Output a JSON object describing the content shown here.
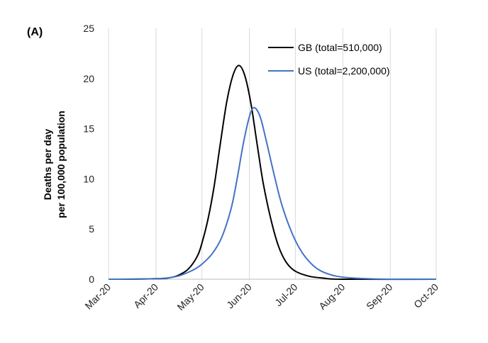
{
  "chart_data": {
    "type": "line",
    "panel_label": "(A)",
    "title": "",
    "xlabel": "",
    "ylabel_lines": [
      "Deaths per day",
      "per 100,000 population"
    ],
    "ylim": [
      0,
      25
    ],
    "yticks": [
      0,
      5,
      10,
      15,
      20,
      25
    ],
    "xlim": [
      "2020-03-01",
      "2020-10-01"
    ],
    "xtick_labels": [
      "Mar-20",
      "Apr-20",
      "May-20",
      "Jun-20",
      "Jul-20",
      "Aug-20",
      "Sep-20",
      "Oct-20"
    ],
    "grid": "vertical",
    "legend_position": "top-right",
    "series": [
      {
        "name": "GB (total=510,000)",
        "color": "#000000",
        "points": [
          [
            "2020-03-01",
            0
          ],
          [
            "2020-03-15",
            0
          ],
          [
            "2020-04-01",
            0.05
          ],
          [
            "2020-04-08",
            0.1
          ],
          [
            "2020-04-15",
            0.35
          ],
          [
            "2020-04-22",
            1.0
          ],
          [
            "2020-04-28",
            2.3
          ],
          [
            "2020-05-01",
            3.6
          ],
          [
            "2020-05-05",
            6.0
          ],
          [
            "2020-05-09",
            9.3
          ],
          [
            "2020-05-13",
            13.5
          ],
          [
            "2020-05-17",
            17.5
          ],
          [
            "2020-05-21",
            20.2
          ],
          [
            "2020-05-25",
            21.3
          ],
          [
            "2020-05-29",
            20.3
          ],
          [
            "2020-06-02",
            17.5
          ],
          [
            "2020-06-06",
            13.5
          ],
          [
            "2020-06-10",
            9.6
          ],
          [
            "2020-06-15",
            6.0
          ],
          [
            "2020-06-20",
            3.3
          ],
          [
            "2020-06-25",
            1.7
          ],
          [
            "2020-07-01",
            0.8
          ],
          [
            "2020-07-10",
            0.3
          ],
          [
            "2020-07-20",
            0.1
          ],
          [
            "2020-08-01",
            0
          ],
          [
            "2020-10-01",
            0
          ]
        ]
      },
      {
        "name": "US (total=2,200,000)",
        "color": "#4472C4",
        "points": [
          [
            "2020-03-01",
            0
          ],
          [
            "2020-04-01",
            0.05
          ],
          [
            "2020-04-15",
            0.3
          ],
          [
            "2020-04-25",
            0.9
          ],
          [
            "2020-05-01",
            1.5
          ],
          [
            "2020-05-08",
            2.6
          ],
          [
            "2020-05-14",
            4.2
          ],
          [
            "2020-05-20",
            7.0
          ],
          [
            "2020-05-24",
            10.0
          ],
          [
            "2020-05-28",
            13.5
          ],
          [
            "2020-06-01",
            16.2
          ],
          [
            "2020-06-04",
            17.1
          ],
          [
            "2020-06-08",
            16.2
          ],
          [
            "2020-06-12",
            13.8
          ],
          [
            "2020-06-17",
            10.5
          ],
          [
            "2020-06-22",
            7.5
          ],
          [
            "2020-06-28",
            4.9
          ],
          [
            "2020-07-04",
            3.0
          ],
          [
            "2020-07-11",
            1.6
          ],
          [
            "2020-07-18",
            0.8
          ],
          [
            "2020-07-28",
            0.3
          ],
          [
            "2020-08-10",
            0.1
          ],
          [
            "2020-09-01",
            0
          ],
          [
            "2020-10-01",
            0
          ]
        ]
      }
    ]
  }
}
